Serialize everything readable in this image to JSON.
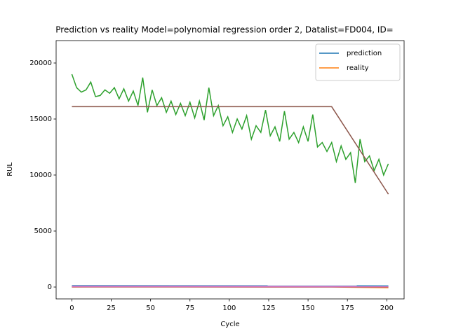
{
  "chart_data": {
    "type": "line",
    "title": "Prediction vs reality Model=polynomial regression order 2, Datalist=FD004, ID=",
    "x_label": "Cycle",
    "y_label": "RUL",
    "xlim": [
      -10,
      211
    ],
    "ylim": [
      -1060,
      22000
    ],
    "xticks": [
      0,
      25,
      50,
      75,
      100,
      125,
      150,
      175,
      200
    ],
    "yticks": [
      0,
      5000,
      10000,
      15000,
      20000
    ],
    "grid": false,
    "legend": "upper right",
    "series": [
      {
        "name": "prediction",
        "color": "#1f77b4",
        "x": [
          0,
          201
        ],
        "values": [
          120,
          100
        ]
      },
      {
        "name": "reality",
        "color": "#ff7f0e",
        "x": [
          0,
          165,
          201
        ],
        "values": [
          0,
          0,
          -60
        ]
      },
      {
        "color": "#2ca02c",
        "x": [
          0,
          3,
          6,
          9,
          12,
          15,
          18,
          21,
          24,
          27,
          30,
          33,
          36,
          39,
          42,
          45,
          48,
          51,
          54,
          57,
          60,
          63,
          66,
          69,
          72,
          75,
          78,
          81,
          84,
          87,
          90,
          93,
          96,
          99,
          102,
          105,
          108,
          111,
          114,
          117,
          120,
          123,
          126,
          129,
          132,
          135,
          138,
          141,
          144,
          147,
          150,
          153,
          156,
          159,
          162,
          165,
          168,
          171,
          174,
          177,
          180,
          183,
          186,
          189,
          192,
          195,
          198,
          201
        ],
        "values": [
          19000,
          17800,
          17400,
          17600,
          18300,
          17000,
          17100,
          17600,
          17300,
          17800,
          16800,
          17700,
          16600,
          17500,
          16200,
          18700,
          15600,
          17600,
          16200,
          16900,
          15600,
          16600,
          15400,
          16400,
          15300,
          16500,
          15100,
          16600,
          14900,
          17800,
          15300,
          16200,
          14400,
          15200,
          13800,
          15000,
          14100,
          15300,
          13200,
          14400,
          13800,
          15800,
          13500,
          14300,
          13000,
          15700,
          13200,
          13800,
          12900,
          14300,
          13000,
          15400,
          12500,
          12900,
          12100,
          12900,
          11200,
          12600,
          11400,
          12000,
          9300,
          13200,
          11200,
          11700,
          10400,
          11400,
          10000,
          11000
        ]
      },
      {
        "color": "#d62728",
        "x": [
          0,
          201
        ],
        "values": [
          20,
          10
        ]
      },
      {
        "color": "#9467bd",
        "x": [
          0,
          201
        ],
        "values": [
          30,
          20
        ]
      },
      {
        "color": "#8c564b",
        "x": [
          0,
          165,
          201
        ],
        "values": [
          16100,
          16100,
          8300
        ]
      },
      {
        "color": "#e377c2",
        "x": [
          0,
          201
        ],
        "values": [
          60,
          40
        ]
      }
    ]
  }
}
